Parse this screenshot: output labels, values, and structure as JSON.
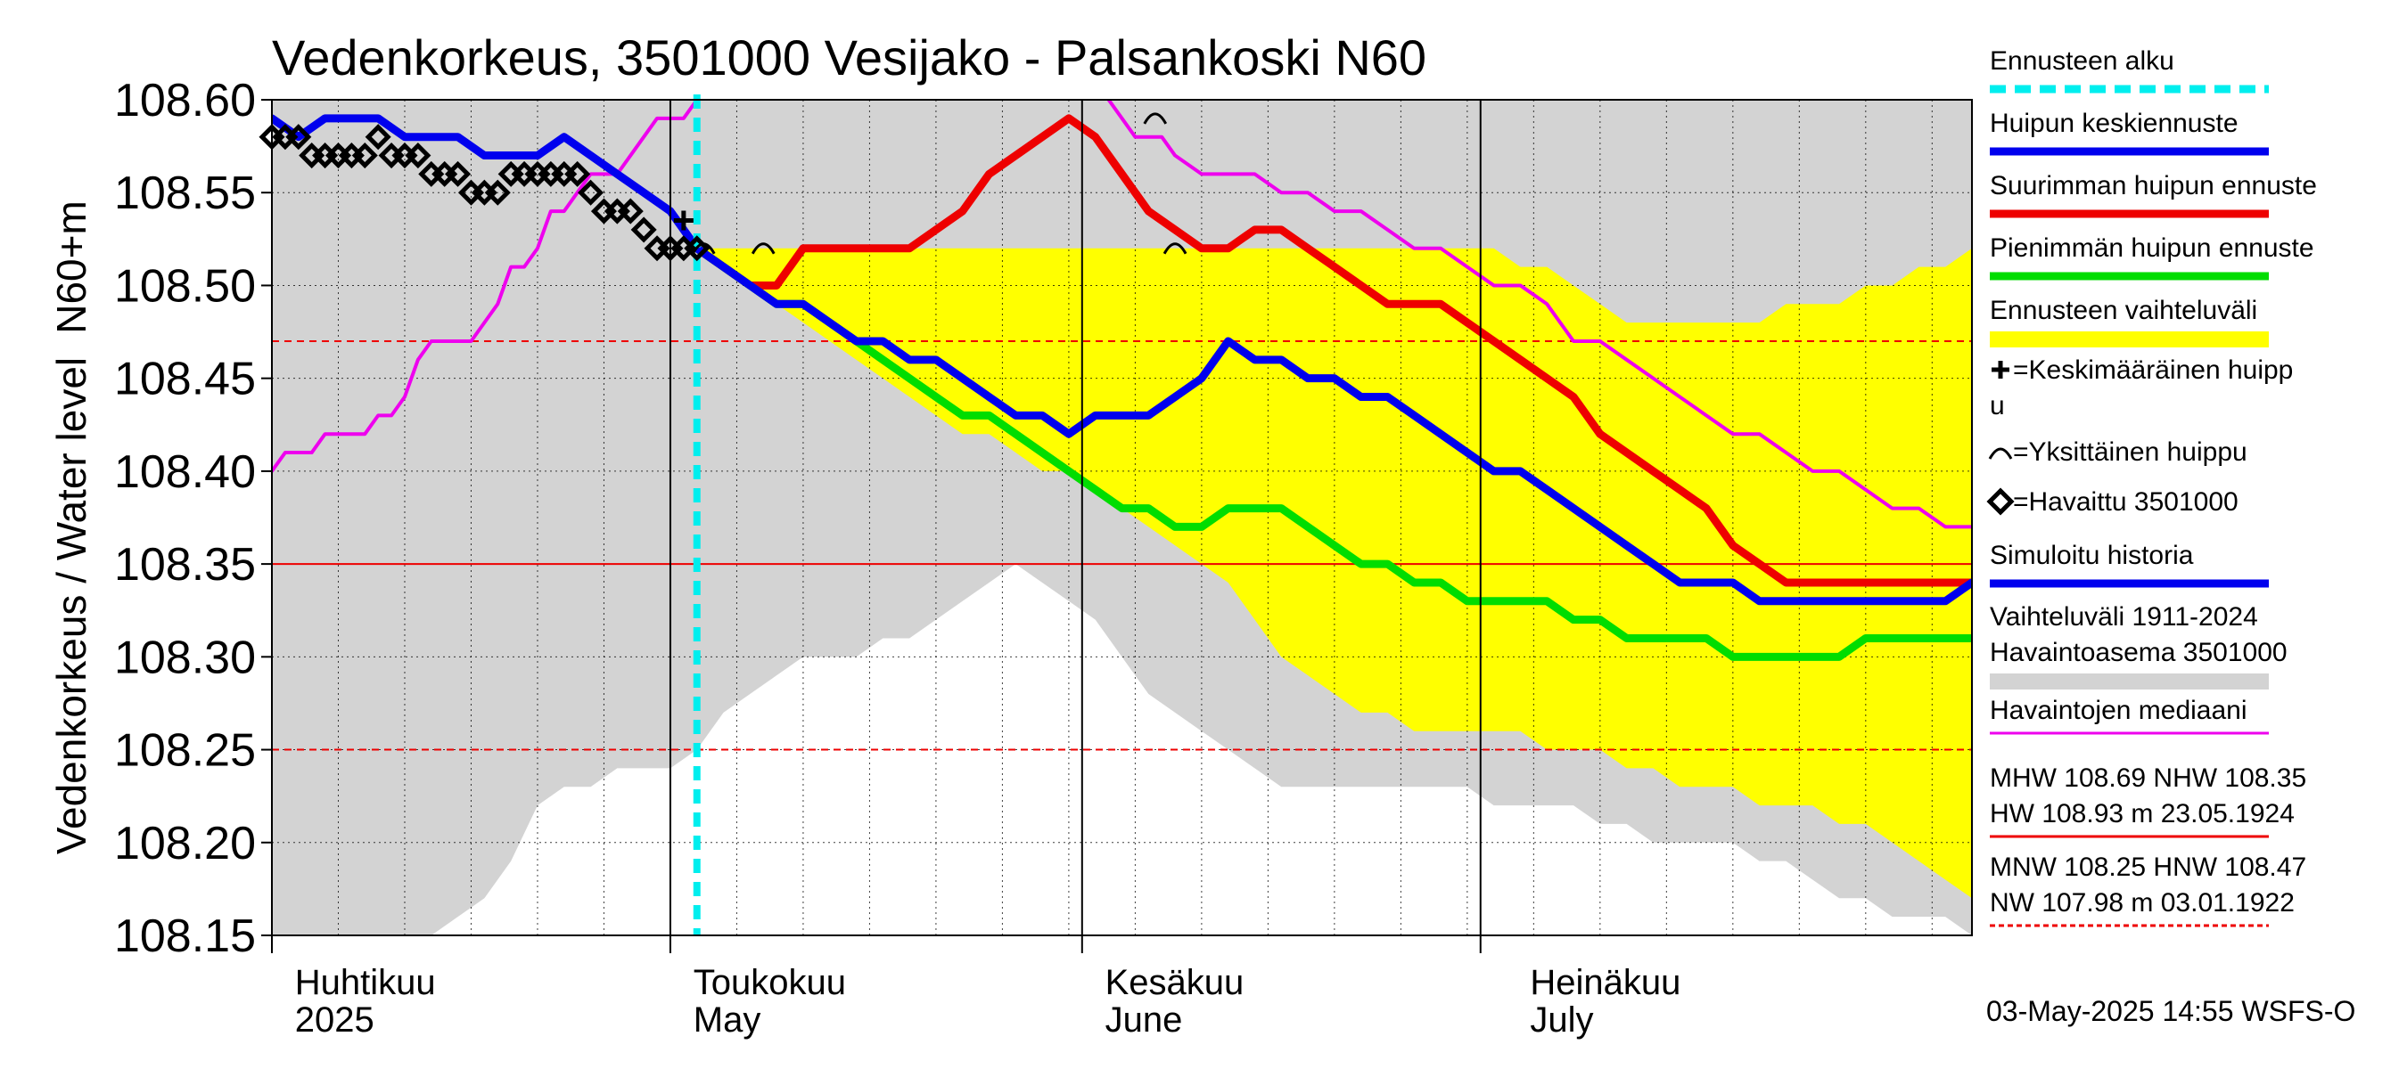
{
  "chart_data": {
    "type": "line",
    "title": "Vedenkorkeus, 3501000 Vesijako - Palsankoski N60",
    "ylabel_main": "Vedenkorkeus / Water level",
    "ylabel_unit": "N60+m",
    "ylim": [
      108.15,
      108.6
    ],
    "yticks": [
      "108.15",
      "108.20",
      "108.25",
      "108.30",
      "108.35",
      "108.40",
      "108.45",
      "108.50",
      "108.55",
      "108.60"
    ],
    "x_range_days": [
      0,
      128
    ],
    "months": [
      {
        "day": 2,
        "fi": "Huhtikuu",
        "en": "2025"
      },
      {
        "day": 32,
        "fi": "Toukokuu",
        "en": "May"
      },
      {
        "day": 63,
        "fi": "Kesäkuu",
        "en": "June"
      },
      {
        "day": 95,
        "fi": "Heinäkuu",
        "en": "July"
      }
    ],
    "month_boundaries": [
      0,
      30,
      61,
      91
    ],
    "forecast_start_day": 32,
    "reference_lines": [
      {
        "y": 108.35,
        "style": "solid",
        "color": "#ee0000"
      },
      {
        "y": 108.47,
        "style": "dashed",
        "color": "#ee0000"
      },
      {
        "y": 108.25,
        "style": "dashed",
        "color": "#ee0000"
      }
    ],
    "series": [
      {
        "name": "Vaihteluväli 1911-2024 Havaintoasema 3501000",
        "kind": "band",
        "color": "#d3d3d3",
        "x": [
          0,
          2,
          6,
          10,
          12,
          14,
          16,
          18,
          20,
          22,
          24,
          26,
          28,
          30,
          32,
          34,
          36,
          38,
          40,
          42,
          44,
          46,
          48,
          50,
          52,
          54,
          56,
          58,
          60,
          62,
          64,
          66,
          68,
          70,
          72,
          74,
          76,
          78,
          80,
          82,
          84,
          86,
          88,
          90,
          92,
          94,
          96,
          98,
          100,
          102,
          104,
          106,
          108,
          110,
          112,
          114,
          116,
          118,
          120,
          122,
          124,
          126,
          128
        ],
        "upper": [
          108.6,
          108.6,
          108.6,
          108.6,
          108.6,
          108.6,
          108.6,
          108.6,
          108.6,
          108.6,
          108.6,
          108.6,
          108.6,
          108.6,
          108.6,
          108.6,
          108.6,
          108.6,
          108.6,
          108.6,
          108.6,
          108.6,
          108.6,
          108.6,
          108.6,
          108.6,
          108.6,
          108.6,
          108.6,
          108.6,
          108.6,
          108.6,
          108.6,
          108.6,
          108.6,
          108.6,
          108.6,
          108.6,
          108.6,
          108.6,
          108.6,
          108.6,
          108.6,
          108.6,
          108.6,
          108.6,
          108.6,
          108.6,
          108.6,
          108.6,
          108.6,
          108.6,
          108.6,
          108.6,
          108.6,
          108.6,
          108.6,
          108.6,
          108.6,
          108.6,
          108.6,
          108.6,
          108.6
        ],
        "lower": [
          108.15,
          108.15,
          108.15,
          108.15,
          108.15,
          108.16,
          108.17,
          108.19,
          108.22,
          108.23,
          108.23,
          108.24,
          108.24,
          108.24,
          108.25,
          108.27,
          108.28,
          108.29,
          108.3,
          108.3,
          108.3,
          108.31,
          108.31,
          108.32,
          108.33,
          108.34,
          108.35,
          108.34,
          108.33,
          108.32,
          108.3,
          108.28,
          108.27,
          108.26,
          108.25,
          108.24,
          108.23,
          108.23,
          108.23,
          108.23,
          108.23,
          108.23,
          108.23,
          108.23,
          108.22,
          108.22,
          108.22,
          108.22,
          108.21,
          108.21,
          108.2,
          108.2,
          108.2,
          108.2,
          108.19,
          108.19,
          108.18,
          108.17,
          108.17,
          108.16,
          108.16,
          108.16,
          108.15
        ]
      },
      {
        "name": "Ennusteen vaihteluväli",
        "kind": "band",
        "color": "#ffff00",
        "x": [
          32,
          34,
          36,
          38,
          40,
          42,
          44,
          46,
          48,
          50,
          52,
          54,
          56,
          58,
          60,
          62,
          64,
          66,
          68,
          70,
          72,
          74,
          76,
          78,
          80,
          82,
          84,
          86,
          88,
          90,
          92,
          94,
          96,
          98,
          100,
          102,
          104,
          106,
          108,
          110,
          112,
          114,
          116,
          118,
          120,
          122,
          124,
          126,
          128
        ],
        "upper": [
          108.52,
          108.52,
          108.52,
          108.52,
          108.52,
          108.52,
          108.52,
          108.52,
          108.52,
          108.52,
          108.52,
          108.52,
          108.52,
          108.52,
          108.52,
          108.52,
          108.52,
          108.52,
          108.52,
          108.52,
          108.52,
          108.52,
          108.52,
          108.52,
          108.52,
          108.52,
          108.52,
          108.52,
          108.52,
          108.52,
          108.52,
          108.51,
          108.51,
          108.5,
          108.49,
          108.48,
          108.48,
          108.48,
          108.48,
          108.48,
          108.48,
          108.49,
          108.49,
          108.49,
          108.5,
          108.5,
          108.51,
          108.51,
          108.52
        ],
        "lower": [
          108.52,
          108.51,
          108.5,
          108.49,
          108.48,
          108.47,
          108.46,
          108.45,
          108.44,
          108.43,
          108.42,
          108.42,
          108.41,
          108.4,
          108.4,
          108.39,
          108.38,
          108.37,
          108.36,
          108.35,
          108.34,
          108.32,
          108.3,
          108.29,
          108.28,
          108.27,
          108.27,
          108.26,
          108.26,
          108.26,
          108.26,
          108.26,
          108.25,
          108.25,
          108.25,
          108.24,
          108.24,
          108.23,
          108.23,
          108.23,
          108.22,
          108.22,
          108.22,
          108.21,
          108.21,
          108.2,
          108.19,
          108.18,
          108.17
        ]
      },
      {
        "name": "Havaintojen mediaani",
        "kind": "line",
        "color": "#ee00ee",
        "width": 4,
        "x": [
          0,
          1,
          2,
          3,
          4,
          5,
          6,
          7,
          8,
          9,
          10,
          11,
          12,
          13,
          14,
          15,
          16,
          17,
          18,
          19,
          20,
          21,
          22,
          23,
          24,
          25,
          26,
          27,
          28,
          29,
          30,
          31,
          32,
          33,
          34,
          35,
          36,
          62,
          63,
          64,
          65,
          66,
          67,
          68,
          70,
          72,
          74,
          76,
          78,
          80,
          82,
          84,
          86,
          88,
          90,
          92,
          94,
          96,
          98,
          100,
          102,
          104,
          106,
          108,
          110,
          112,
          114,
          116,
          118,
          120,
          122,
          124,
          126,
          128
        ],
        "y": [
          108.4,
          108.41,
          108.41,
          108.41,
          108.42,
          108.42,
          108.42,
          108.42,
          108.43,
          108.43,
          108.44,
          108.46,
          108.47,
          108.47,
          108.47,
          108.47,
          108.48,
          108.49,
          108.51,
          108.51,
          108.52,
          108.54,
          108.54,
          108.55,
          108.56,
          108.56,
          108.56,
          108.57,
          108.58,
          108.59,
          108.59,
          108.59,
          108.6,
          108.61,
          108.62,
          108.62,
          108.63,
          108.61,
          108.6,
          108.59,
          108.58,
          108.58,
          108.58,
          108.57,
          108.56,
          108.56,
          108.56,
          108.55,
          108.55,
          108.54,
          108.54,
          108.53,
          108.52,
          108.52,
          108.51,
          108.5,
          108.5,
          108.49,
          108.47,
          108.47,
          108.46,
          108.45,
          108.44,
          108.43,
          108.42,
          108.42,
          108.41,
          108.4,
          108.4,
          108.39,
          108.38,
          108.38,
          108.37,
          108.37
        ]
      },
      {
        "name": "Simuloitu historia",
        "kind": "line",
        "color": "#0000ee",
        "width": 9,
        "x": [
          0,
          2,
          4,
          6,
          8,
          10,
          12,
          14,
          16,
          18,
          20,
          22,
          24,
          26,
          28,
          30,
          32
        ],
        "y": [
          108.59,
          108.58,
          108.59,
          108.59,
          108.59,
          108.58,
          108.58,
          108.58,
          108.57,
          108.57,
          108.57,
          108.58,
          108.57,
          108.56,
          108.55,
          108.54,
          108.52
        ]
      },
      {
        "name": "Suurimman huipun ennuste",
        "kind": "line",
        "color": "#ee0000",
        "width": 9,
        "x": [
          32,
          34,
          36,
          38,
          40,
          42,
          44,
          46,
          48,
          50,
          52,
          54,
          56,
          58,
          60,
          62,
          64,
          66,
          68,
          70,
          72,
          74,
          76,
          78,
          80,
          82,
          84,
          86,
          88,
          90,
          92,
          94,
          96,
          98,
          100,
          102,
          104,
          106,
          108,
          110,
          112,
          114,
          116,
          118,
          120,
          122,
          124,
          126,
          128
        ],
        "y": [
          108.52,
          108.51,
          108.5,
          108.5,
          108.52,
          108.52,
          108.52,
          108.52,
          108.52,
          108.53,
          108.54,
          108.56,
          108.57,
          108.58,
          108.59,
          108.58,
          108.56,
          108.54,
          108.53,
          108.52,
          108.52,
          108.53,
          108.53,
          108.52,
          108.51,
          108.5,
          108.49,
          108.49,
          108.49,
          108.48,
          108.47,
          108.46,
          108.45,
          108.44,
          108.42,
          108.41,
          108.4,
          108.39,
          108.38,
          108.36,
          108.35,
          108.34,
          108.34,
          108.34,
          108.34,
          108.34,
          108.34,
          108.34,
          108.34
        ]
      },
      {
        "name": "Pienimmän huipun ennuste",
        "kind": "line",
        "color": "#00dd00",
        "width": 9,
        "x": [
          32,
          34,
          36,
          38,
          40,
          42,
          44,
          46,
          48,
          50,
          52,
          54,
          56,
          58,
          60,
          62,
          64,
          66,
          68,
          70,
          72,
          74,
          76,
          78,
          80,
          82,
          84,
          86,
          88,
          90,
          92,
          94,
          96,
          98,
          100,
          102,
          104,
          106,
          108,
          110,
          112,
          114,
          116,
          118,
          120,
          122,
          124,
          126,
          128
        ],
        "y": [
          108.52,
          108.51,
          108.5,
          108.49,
          108.49,
          108.48,
          108.47,
          108.46,
          108.45,
          108.44,
          108.43,
          108.43,
          108.42,
          108.41,
          108.4,
          108.39,
          108.38,
          108.38,
          108.37,
          108.37,
          108.38,
          108.38,
          108.38,
          108.37,
          108.36,
          108.35,
          108.35,
          108.34,
          108.34,
          108.33,
          108.33,
          108.33,
          108.33,
          108.32,
          108.32,
          108.31,
          108.31,
          108.31,
          108.31,
          108.3,
          108.3,
          108.3,
          108.3,
          108.3,
          108.31,
          108.31,
          108.31,
          108.31,
          108.31
        ]
      },
      {
        "name": "Huipun keskiennuste",
        "kind": "line",
        "color": "#0000ee",
        "width": 9,
        "x": [
          32,
          34,
          36,
          38,
          40,
          42,
          44,
          46,
          48,
          50,
          52,
          54,
          56,
          58,
          60,
          62,
          64,
          66,
          68,
          70,
          72,
          74,
          76,
          78,
          80,
          82,
          84,
          86,
          88,
          90,
          92,
          94,
          96,
          98,
          100,
          102,
          104,
          106,
          108,
          110,
          112,
          114,
          116,
          118,
          120,
          122,
          124,
          126,
          128
        ],
        "y": [
          108.52,
          108.51,
          108.5,
          108.49,
          108.49,
          108.48,
          108.47,
          108.47,
          108.46,
          108.46,
          108.45,
          108.44,
          108.43,
          108.43,
          108.42,
          108.43,
          108.43,
          108.43,
          108.44,
          108.45,
          108.47,
          108.46,
          108.46,
          108.45,
          108.45,
          108.44,
          108.44,
          108.43,
          108.42,
          108.41,
          108.4,
          108.4,
          108.39,
          108.38,
          108.37,
          108.36,
          108.35,
          108.34,
          108.34,
          108.34,
          108.33,
          108.33,
          108.33,
          108.33,
          108.33,
          108.33,
          108.33,
          108.33,
          108.34
        ]
      },
      {
        "name": "Havaittu 3501000",
        "kind": "markers",
        "marker": "diamond",
        "color": "#000000",
        "x": [
          0,
          1,
          2,
          3,
          4,
          5,
          6,
          7,
          8,
          9,
          10,
          11,
          12,
          13,
          14,
          15,
          16,
          17,
          18,
          19,
          20,
          21,
          22,
          23,
          24,
          25,
          26,
          27,
          28,
          29,
          30,
          31,
          32
        ],
        "y": [
          108.58,
          108.58,
          108.58,
          108.57,
          108.57,
          108.57,
          108.57,
          108.57,
          108.58,
          108.57,
          108.57,
          108.57,
          108.56,
          108.56,
          108.56,
          108.55,
          108.55,
          108.55,
          108.56,
          108.56,
          108.56,
          108.56,
          108.56,
          108.56,
          108.55,
          108.54,
          108.54,
          108.54,
          108.53,
          108.52,
          108.52,
          108.52,
          108.52
        ]
      }
    ],
    "mean_peak_marker": {
      "x": 31,
      "y": 108.535
    },
    "single_peak_markers": [
      {
        "x": 32.5,
        "y": 108.52
      },
      {
        "x": 37,
        "y": 108.52
      },
      {
        "x": 66.5,
        "y": 108.59
      },
      {
        "x": 68,
        "y": 108.52
      }
    ],
    "legend": {
      "placement": "right",
      "items": [
        {
          "label": "Ennusteen alku",
          "swatch": "dash",
          "color": "#00eeee"
        },
        {
          "label": "Huipun keskiennuste",
          "swatch": "line",
          "color": "#0000ee"
        },
        {
          "label": "Suurimman huipun ennuste",
          "swatch": "line",
          "color": "#ee0000"
        },
        {
          "label": "Pienimmän huipun ennuste",
          "swatch": "line",
          "color": "#00dd00"
        },
        {
          "label": "Ennusteen vaihteluväli",
          "swatch": "band",
          "color": "#ffff00"
        },
        {
          "label": "=Keskimääräinen huipp",
          "label2": "u",
          "swatch": "plus",
          "color": "#000000"
        },
        {
          "label": "=Yksittäinen huippu",
          "swatch": "arc",
          "color": "#000000"
        },
        {
          "label": "=Havaittu 3501000",
          "swatch": "diamond",
          "color": "#000000"
        },
        {
          "label": "Simuloitu historia",
          "swatch": "line",
          "color": "#0000ee"
        },
        {
          "label": "Vaihteluväli 1911-2024",
          "label2": " Havaintoasema 3501000",
          "swatch": "band",
          "color": "#d3d3d3"
        },
        {
          "label": "Havaintojen mediaani",
          "swatch": "thin",
          "color": "#ee00ee"
        },
        {
          "label": "MHW 108.69 NHW 108.35",
          "label2": "HW 108.93 m 23.05.1924",
          "swatch": "thin",
          "color": "#ee0000"
        },
        {
          "label": "MNW 108.25 HNW 108.47",
          "label2": "NW 107.98 m 03.01.1922",
          "swatch": "dashed",
          "color": "#ee0000"
        }
      ]
    },
    "timestamp": "03-May-2025 14:55 WSFS-O"
  }
}
